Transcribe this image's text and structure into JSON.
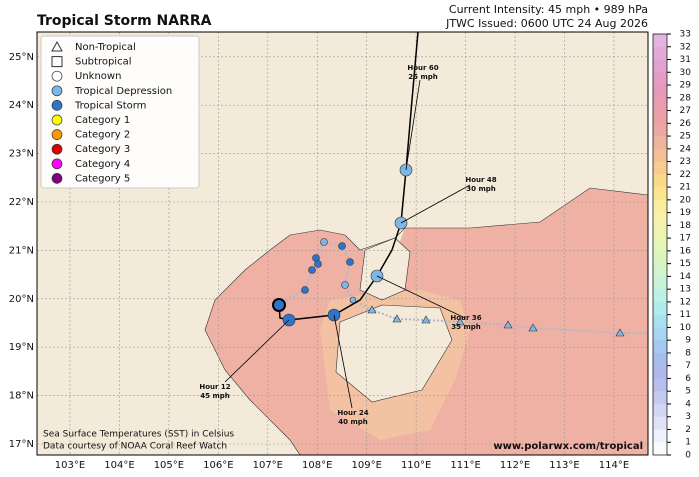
{
  "title": "Tropical Storm NARRA",
  "intensity": "Current Intensity: 45 mph • 989 hPa",
  "issued": "JTWC Issued: 0600 UTC 24 Aug 2026",
  "legend": [
    "Non-Tropical",
    "Subtropical",
    "Unknown",
    "Tropical Depression",
    "Tropical Storm",
    "Category 1",
    "Category 2",
    "Category 3",
    "Category 4",
    "Category 5"
  ],
  "lon_labels": [
    "103°E",
    "104°E",
    "105°E",
    "106°E",
    "107°E",
    "108°E",
    "109°E",
    "110°E",
    "111°E",
    "112°E",
    "113°E",
    "114°E"
  ],
  "lat_labels": [
    "17°N",
    "18°N",
    "19°N",
    "20°N",
    "21°N",
    "22°N",
    "23°N",
    "24°N",
    "25°N"
  ],
  "forecast": [
    {
      "hour": "Hour 12",
      "wind": "45 mph"
    },
    {
      "hour": "Hour 24",
      "wind": "40 mph"
    },
    {
      "hour": "Hour 36",
      "wind": "35 mph"
    },
    {
      "hour": "Hour 48",
      "wind": "30 mph"
    },
    {
      "hour": "Hour 60",
      "wind": "25 mph"
    }
  ],
  "colorbar": {
    "lim": [
      0,
      33
    ],
    "ticks": [
      0,
      1,
      2,
      3,
      4,
      5,
      6,
      7,
      8,
      9,
      10,
      11,
      12,
      13,
      14,
      15,
      16,
      17,
      18,
      19,
      20,
      21,
      22,
      23,
      24,
      25,
      26,
      27,
      28,
      29,
      30,
      31,
      32,
      33
    ]
  },
  "footnote": [
    "Sea Surface Temperatures (SST) in Celsius",
    "Data courtesy of NOAA Coral Reef Watch"
  ],
  "credit": "www.polarwx.com/tropical"
}
